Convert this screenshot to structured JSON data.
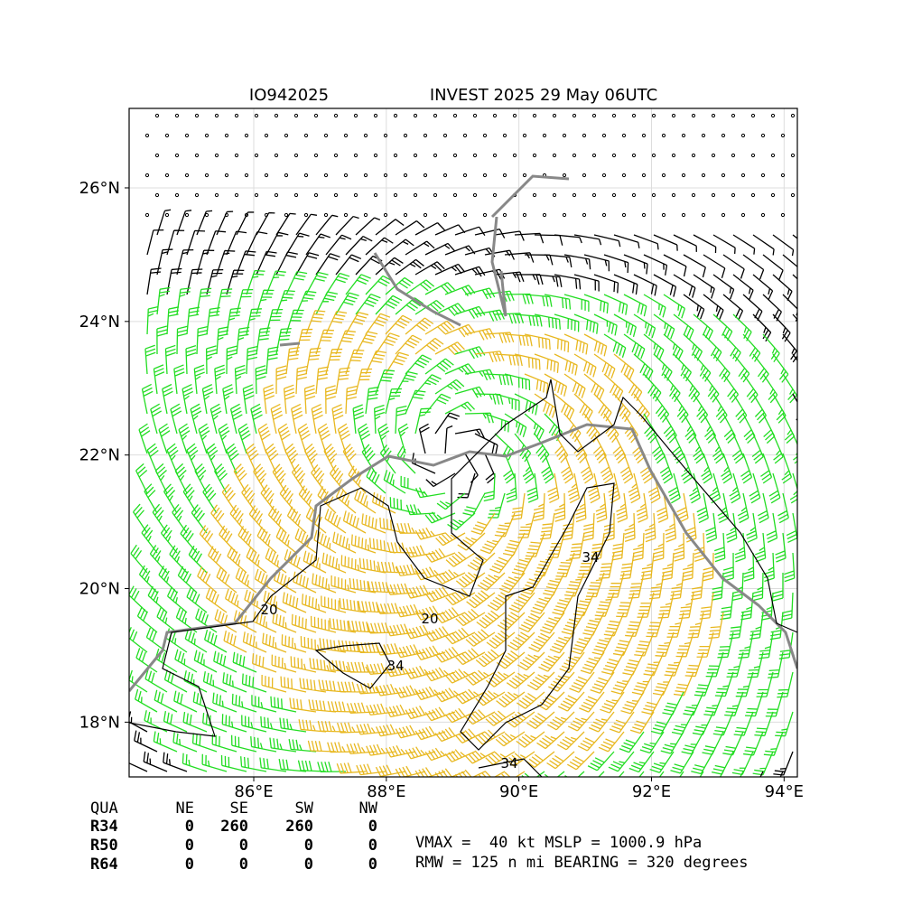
{
  "map": {
    "title_left": "IO942025",
    "title_right": "INVEST 2025 29 May 06UTC",
    "xlim": [
      84.12,
      94.2
    ],
    "ylim": [
      17.18,
      27.19
    ],
    "xticks": [
      {
        "value": 86,
        "label": "86°E"
      },
      {
        "value": 88,
        "label": "88°E"
      },
      {
        "value": 90,
        "label": "90°E"
      },
      {
        "value": 92,
        "label": "92°E"
      },
      {
        "value": 94,
        "label": "94°E"
      }
    ],
    "yticks": [
      {
        "value": 18,
        "label": "18°N"
      },
      {
        "value": 20,
        "label": "20°N"
      },
      {
        "value": 22,
        "label": "22°N"
      },
      {
        "value": 24,
        "label": "24°N"
      },
      {
        "value": 26,
        "label": "26°N"
      }
    ],
    "contour_labels": [
      "20",
      "20",
      "34",
      "34",
      "34"
    ]
  },
  "table": {
    "header": [
      "QUA",
      "NE",
      "SE",
      "SW",
      "NW"
    ],
    "rows": [
      [
        "R34",
        "0",
        "260",
        "260",
        "0"
      ],
      [
        "R50",
        "0",
        "0",
        "0",
        "0"
      ],
      [
        "R64",
        "0",
        "0",
        "0",
        "0"
      ]
    ]
  },
  "info": [
    "VMAX =  40 kt MSLP = 1000.9 hPa",
    "RMW = 125 n mi BEARING = 320 degrees"
  ]
}
